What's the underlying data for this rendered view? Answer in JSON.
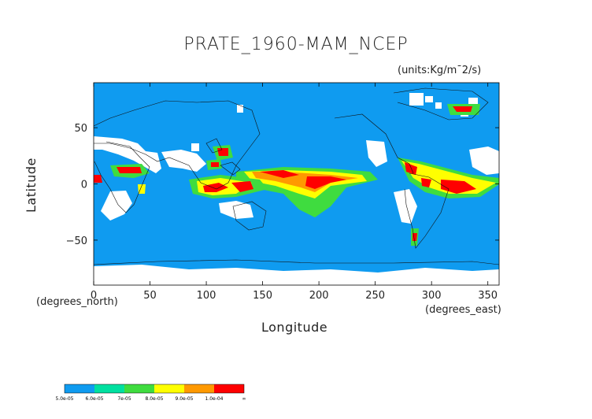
{
  "title": "PRATE_1960-MAM_NCEP",
  "units": "(units:Kg/m¯2/s)",
  "xlabel": "Longitude",
  "ylabel": "Latitude",
  "x_unit_left": "(degrees_north)",
  "x_unit_right": "(degrees_east)",
  "x_ticks": [
    "0",
    "50",
    "100",
    "150",
    "200",
    "250",
    "300",
    "350"
  ],
  "x_tick_values": [
    0,
    50,
    100,
    150,
    200,
    250,
    300,
    350
  ],
  "y_ticks": [
    "50",
    "0",
    "−50"
  ],
  "y_tick_values": [
    50,
    0,
    -50
  ],
  "map": {
    "lon_range": [
      0,
      360
    ],
    "lat_range": [
      -90,
      90
    ],
    "background_color": "#0f9bf0"
  },
  "colorbar": {
    "labels": [
      "5.0e-05",
      "6.0e-05",
      "7e-05",
      "8.0e-05",
      "9.0e-05",
      "1.0e-04",
      "∞"
    ],
    "colors": [
      "#0f9bf0",
      "#00e0a0",
      "#3fdc3f",
      "#ffff00",
      "#ff9900",
      "#ff0000"
    ]
  }
}
